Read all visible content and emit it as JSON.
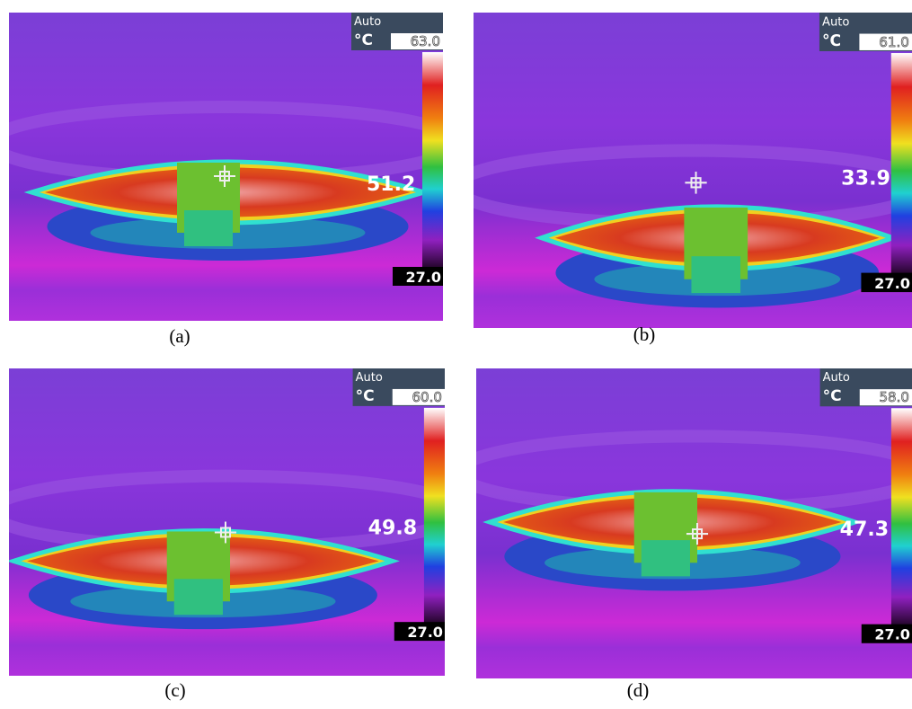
{
  "panels": [
    {
      "mode": "Auto",
      "unit": "°C",
      "max": "63.0",
      "spot": "51.2",
      "min": "27.0",
      "caption": "(a)"
    },
    {
      "mode": "Auto",
      "unit": "°C",
      "max": "61.0",
      "spot": "33.9",
      "min": "27.0",
      "caption": "(b)"
    },
    {
      "mode": "Auto",
      "unit": "°C",
      "max": "60.0",
      "spot": "49.8",
      "min": "27.0",
      "caption": "(c)"
    },
    {
      "mode": "Auto",
      "unit": "°C",
      "max": "58.0",
      "spot": "47.3",
      "min": "27.0",
      "caption": "(d)"
    }
  ]
}
